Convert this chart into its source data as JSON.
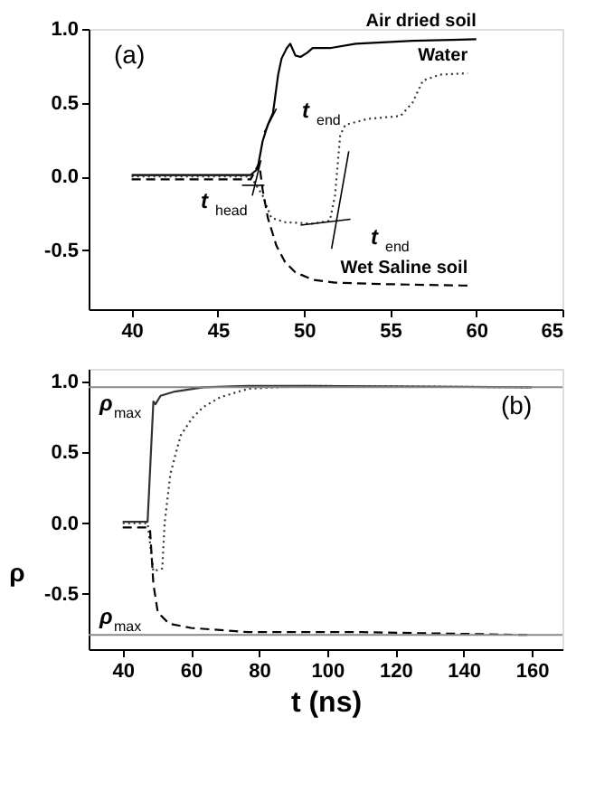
{
  "chart_data": [
    {
      "type": "line",
      "xlim": [
        37.5,
        65
      ],
      "ylim": [
        -0.9,
        1.0
      ],
      "xticks": [
        40,
        45,
        50,
        55,
        60,
        65
      ],
      "yticks": [
        {
          "value": -0.5,
          "label": "-0.5"
        },
        {
          "value": 0,
          "label": "0.0"
        },
        {
          "value": 0.5,
          "label": "0.5"
        },
        {
          "value": 1,
          "label": "1.0"
        }
      ],
      "grid": false,
      "marker": "none",
      "series": [
        {
          "name": "Air dried soil",
          "color": "#000000",
          "line_style": "solid",
          "x": [
            40,
            46.9,
            47.3,
            47.6,
            47.9,
            48.2,
            48.5,
            48.7,
            49.0,
            49.2,
            49.5,
            49.8,
            50.2,
            50.5,
            51.5,
            53,
            56.3,
            60
          ],
          "values": [
            0.01,
            0.01,
            0.05,
            0.24,
            0.35,
            0.43,
            0.69,
            0.8,
            0.87,
            0.9,
            0.82,
            0.81,
            0.84,
            0.87,
            0.87,
            0.9,
            0.92,
            0.93
          ]
        },
        {
          "name": "Water",
          "color": "#333333",
          "line_style": "dotted",
          "x": [
            40,
            46.9,
            47.6,
            48.1,
            48.9,
            50.5,
            51.5,
            51.8,
            52.1,
            52.4,
            53.7,
            55.6,
            56.3,
            56.9,
            57.9,
            59.5
          ],
          "values": [
            0.0,
            0.0,
            -0.13,
            -0.28,
            -0.31,
            -0.32,
            -0.3,
            -0.13,
            0.28,
            0.35,
            0.39,
            0.41,
            0.5,
            0.65,
            0.69,
            0.7
          ]
        },
        {
          "name": "Wet Saline soil",
          "color": "#000000",
          "line_style": "dashed",
          "x": [
            40,
            46.9,
            47.4,
            47.6,
            47.9,
            48.4,
            48.9,
            49.5,
            50.5,
            51.8,
            54.7,
            59.5
          ],
          "values": [
            -0.02,
            -0.02,
            0.09,
            -0.09,
            -0.28,
            -0.47,
            -0.58,
            -0.65,
            -0.7,
            -0.72,
            -0.73,
            -0.74
          ]
        },
        {
          "type": "line",
          "color": "#000000",
          "line_style": "solid",
          "x": [
            47.7,
            48.4
          ],
          "values": [
            0.3,
            0.46
          ]
        },
        {
          "type": "line",
          "color": "#000000",
          "line_style": "solid",
          "x": [
            46.4,
            47.7
          ],
          "values": [
            -0.06,
            -0.06
          ]
        },
        {
          "type": "line",
          "color": "#000000",
          "line_style": "solid",
          "x": [
            47.0,
            47.5
          ],
          "values": [
            -0.13,
            0.11
          ]
        },
        {
          "type": "line",
          "color": "#000000",
          "line_style": "solid",
          "x": [
            51.6,
            52.6
          ],
          "values": [
            -0.49,
            0.17
          ]
        },
        {
          "type": "line",
          "color": "#000000",
          "line_style": "solid",
          "x": [
            49.8,
            52.7
          ],
          "values": [
            -0.33,
            -0.29
          ]
        }
      ],
      "annotations": [
        "(a)",
        "t$_{end}$",
        "t$_{head}$",
        "t$_{end}$"
      ]
    },
    {
      "type": "line",
      "xlim": [
        30,
        169
      ],
      "ylim": [
        -0.89,
        1.09
      ],
      "xticks": [
        40,
        60,
        80,
        100,
        120,
        140,
        160
      ],
      "yticks": [
        {
          "value": -0.5,
          "label": "-0.5"
        },
        {
          "value": 0,
          "label": "0.0"
        },
        {
          "value": 0.5,
          "label": "0.5"
        },
        {
          "value": 1,
          "label": "1.0"
        }
      ],
      "xlabel": "t (ns)",
      "ylabel": "ρ",
      "grid": false,
      "marker": "none",
      "series": [
        {
          "color": "#333333",
          "line_style": "solid",
          "x": [
            40,
            47.3,
            49,
            49.6,
            51.1,
            55.3,
            63.6,
            76.9,
            93.5,
            160
          ],
          "values": [
            0.01,
            0.01,
            0.86,
            0.84,
            0.9,
            0.93,
            0.96,
            0.97,
            0.97,
            0.96
          ]
        },
        {
          "color": "#333333",
          "line_style": "dotted",
          "x": [
            40,
            47.3,
            49,
            51.6,
            52.3,
            54,
            57,
            60.3,
            63.6,
            68.6,
            76.9,
            93.5,
            160
          ],
          "values": [
            0.0,
            0.0,
            -0.34,
            -0.32,
            0.0,
            0.35,
            0.62,
            0.74,
            0.82,
            0.89,
            0.95,
            0.97,
            0.96
          ]
        },
        {
          "color": "#000000",
          "line_style": "dashed",
          "x": [
            40,
            47.3,
            48,
            49,
            50.3,
            53.6,
            60,
            76.9,
            110,
            160
          ],
          "values": [
            -0.03,
            -0.03,
            -0.04,
            -0.43,
            -0.63,
            -0.71,
            -0.74,
            -0.77,
            -0.77,
            -0.79
          ]
        }
      ],
      "ref_lines": [
        {
          "axis": "y",
          "value": 0.96,
          "color": "#888888"
        },
        {
          "axis": "y",
          "value": -0.79,
          "color": "#888888"
        }
      ],
      "annotations": [
        "(b)",
        "ρ$_{max}$",
        "ρ$_{max}$"
      ]
    }
  ]
}
